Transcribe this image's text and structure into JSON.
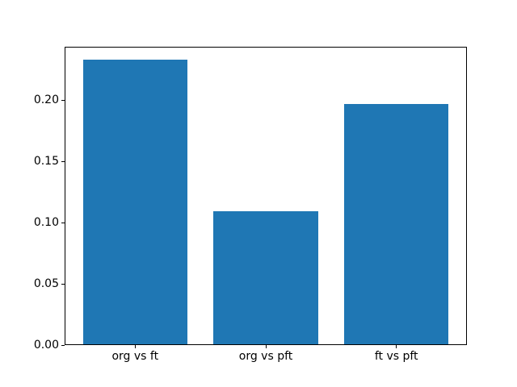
{
  "figure": {
    "background": "#ffffff",
    "text_color": "#000000",
    "spine_color": "#000000"
  },
  "chart_data": {
    "type": "bar",
    "title": "",
    "xlabel": "",
    "ylabel": "",
    "categories": [
      "org vs ft",
      "org vs pft",
      "ft vs pft"
    ],
    "values": [
      0.233,
      0.109,
      0.197
    ],
    "x_positions": [
      0,
      1,
      2
    ],
    "bar_width": 0.8,
    "bar_color": "#1f77b4",
    "xlim": [
      -0.54,
      2.54
    ],
    "ylim": [
      0,
      0.2435
    ],
    "yticks": [
      0.0,
      0.05,
      0.1,
      0.15,
      0.2
    ],
    "ytick_labels": [
      "0.00",
      "0.05",
      "0.10",
      "0.15",
      "0.20"
    ],
    "grid": false,
    "legend": null
  }
}
